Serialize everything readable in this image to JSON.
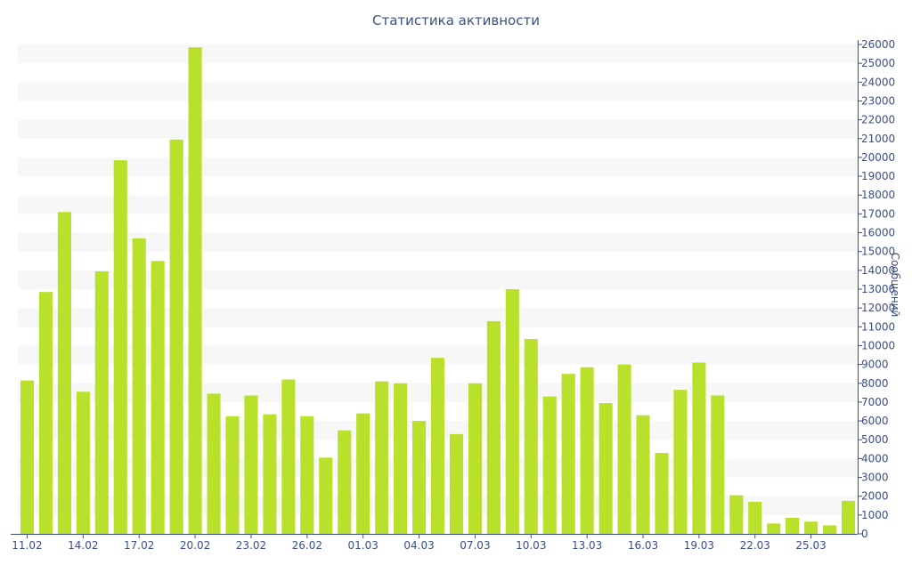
{
  "title": "Статистика активности",
  "chart_data": {
    "type": "bar",
    "title": "Статистика активности",
    "xlabel": "",
    "ylabel": "Сообщений",
    "ylim": [
      0,
      26000
    ],
    "y_axis_side": "right",
    "y_ticks": [
      0,
      1000,
      2000,
      3000,
      4000,
      5000,
      6000,
      7000,
      8000,
      9000,
      10000,
      11000,
      12000,
      13000,
      14000,
      15000,
      16000,
      17000,
      18000,
      19000,
      20000,
      21000,
      22000,
      23000,
      24000,
      25000,
      26000
    ],
    "grid": "alternating horizontal bands",
    "bar_color": "#b9e02a",
    "axis_color": "#3b4e8c",
    "band_color": "#f7f7f7",
    "categories": [
      "11.02",
      "12.02",
      "13.02",
      "14.02",
      "15.02",
      "16.02",
      "17.02",
      "18.02",
      "19.02",
      "20.02",
      "21.02",
      "22.02",
      "23.02",
      "24.02",
      "25.02",
      "26.02",
      "27.02",
      "28.02",
      "01.03",
      "02.03",
      "03.03",
      "04.03",
      "05.03",
      "06.03",
      "07.03",
      "08.03",
      "09.03",
      "10.03",
      "11.03",
      "12.03",
      "13.03",
      "14.03",
      "15.03",
      "16.03",
      "17.03",
      "18.03",
      "19.03",
      "20.03",
      "21.03",
      "22.03",
      "23.03",
      "24.03",
      "25.03",
      "26.03",
      "27.03"
    ],
    "x_tick_labels": [
      "11.02",
      "14.02",
      "17.02",
      "20.02",
      "23.02",
      "26.02",
      "01.03",
      "04.03",
      "07.03",
      "10.03",
      "13.03",
      "16.03",
      "19.03",
      "22.03",
      "25.03"
    ],
    "x_tick_every": 3,
    "values": [
      8150,
      12850,
      17100,
      7550,
      13950,
      19850,
      15700,
      14500,
      20950,
      25850,
      7450,
      6250,
      7350,
      6350,
      8200,
      6250,
      4050,
      5500,
      6400,
      8100,
      8000,
      6000,
      9350,
      5300,
      8000,
      11300,
      13000,
      10350,
      7300,
      8500,
      8850,
      6950,
      9000,
      6300,
      4300,
      7650,
      9100,
      7350,
      2050,
      1700,
      550,
      850,
      650,
      450,
      1750
    ]
  }
}
